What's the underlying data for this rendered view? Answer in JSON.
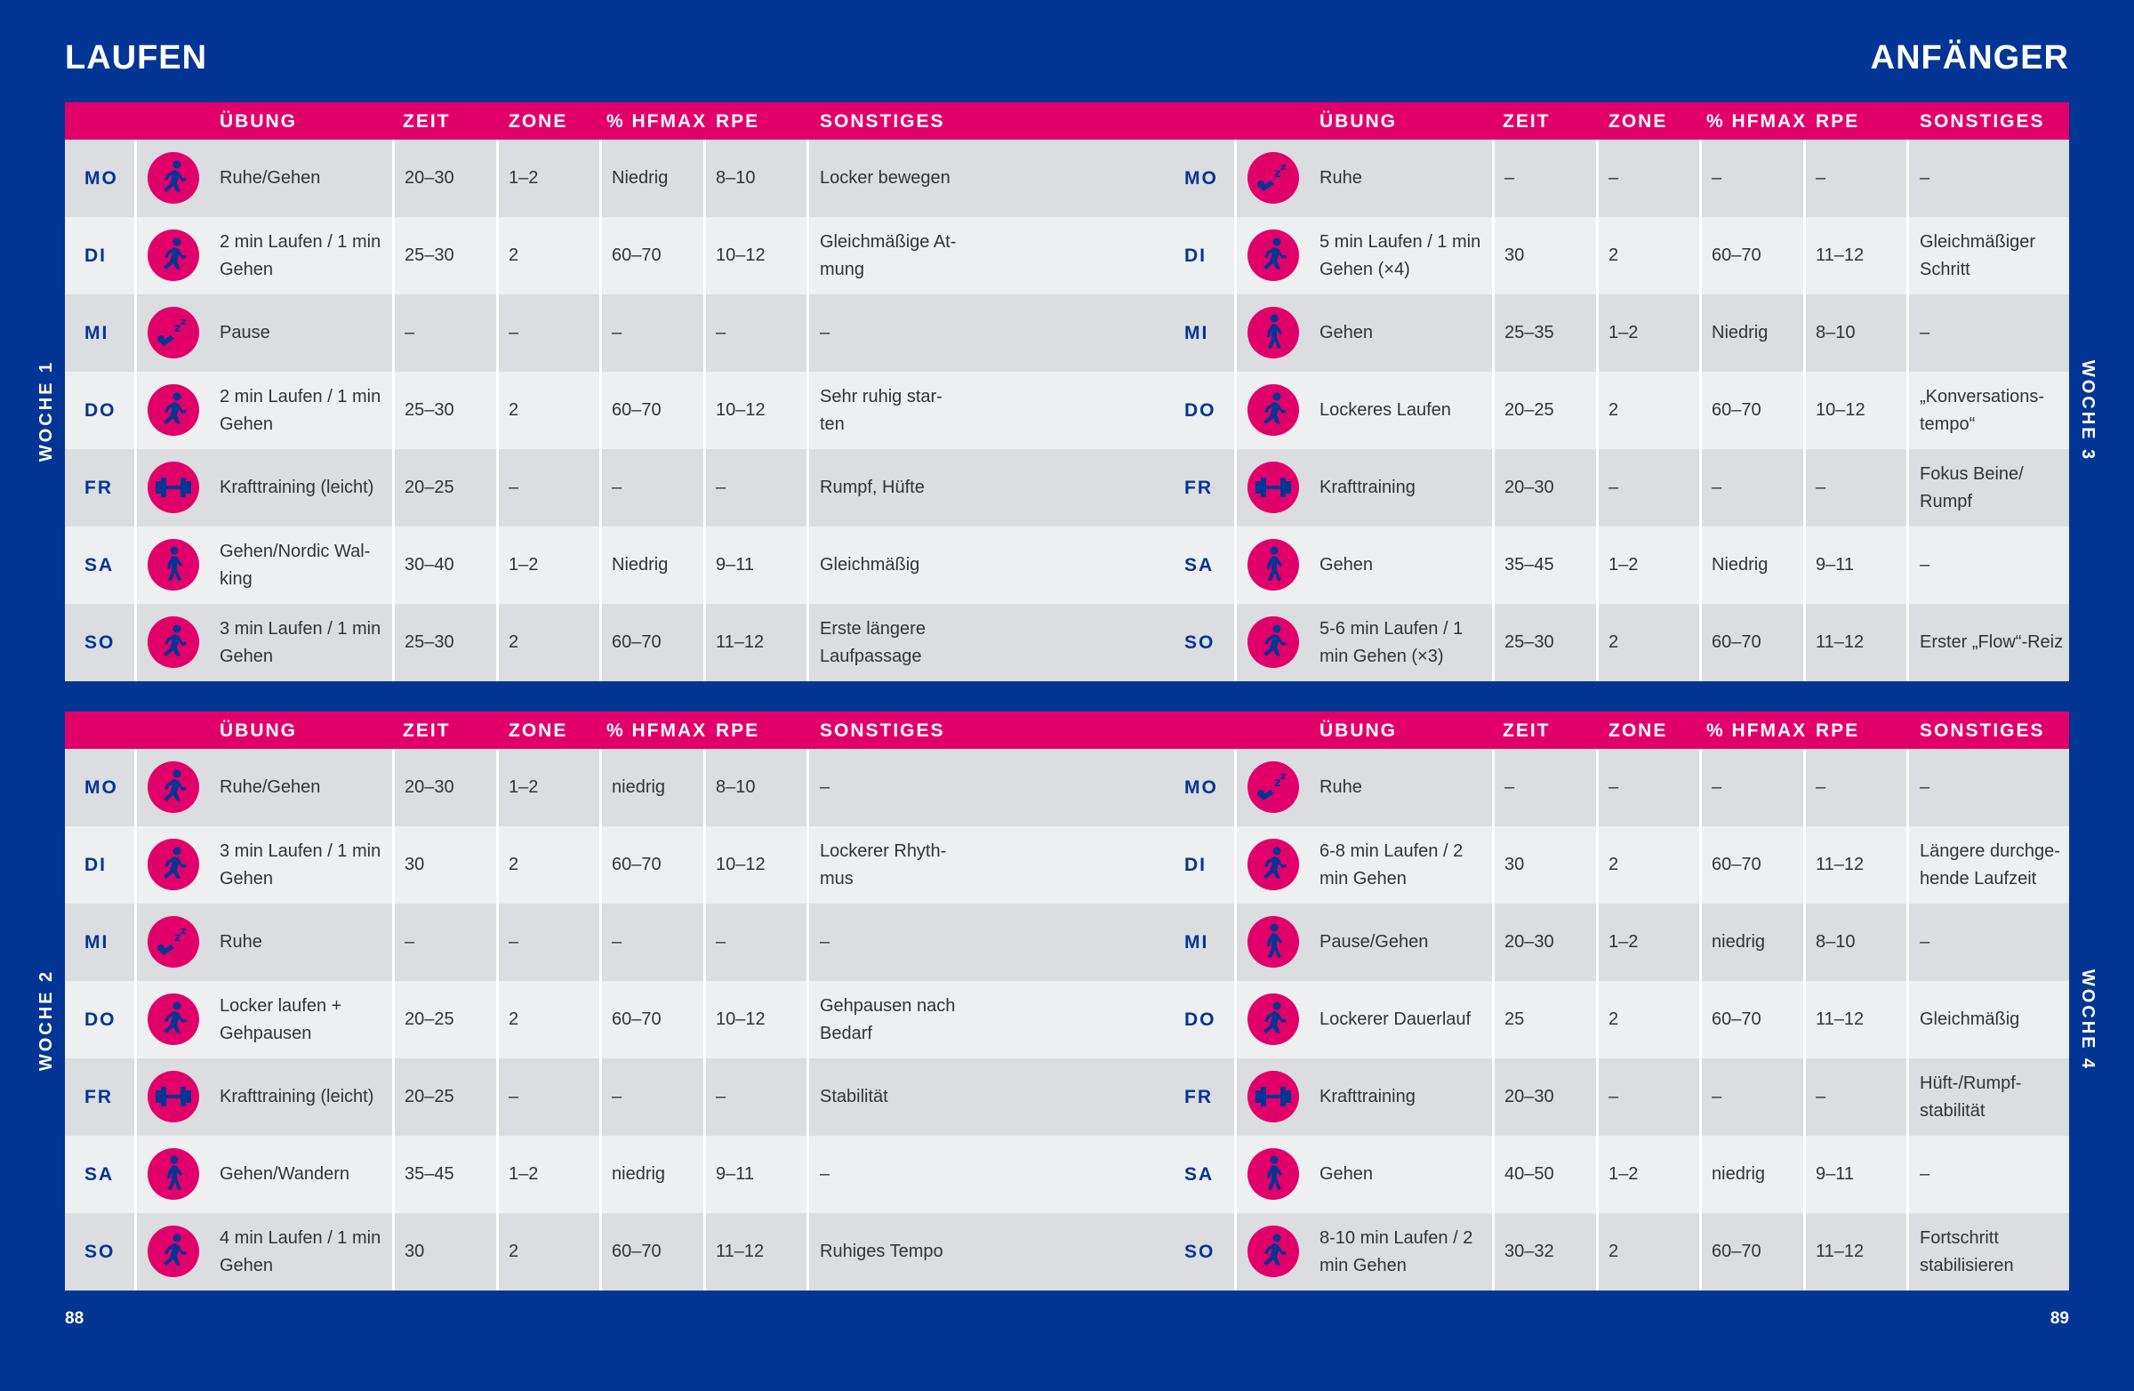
{
  "page": {
    "title_left": "LAUFEN",
    "title_right": "ANFÄNGER",
    "page_left": "88",
    "page_right": "89"
  },
  "colors": {
    "background": "#033594",
    "header": "#e1006a",
    "icon_circle": "#e1006a",
    "icon_figure": "#033594",
    "row_dark": "#dcdde0",
    "row_light": "#eeeff0"
  },
  "headers": [
    "ÜBUNG",
    "ZEIT",
    "ZONE",
    "% HFMAX",
    "RPE",
    "SONSTIGES"
  ],
  "weeks": [
    {
      "label": "WOCHE 1",
      "rows": [
        {
          "day": "MO",
          "icon": "run-icon",
          "exercise": "Ruhe/Gehen",
          "time": "20–30",
          "zone": "1–2",
          "hfmax": "Niedrig",
          "rpe": "8–10",
          "other": "Locker bewegen"
        },
        {
          "day": "DI",
          "icon": "run-icon",
          "exercise": "2 min Laufen / 1 min\nGehen",
          "time": "25–30",
          "zone": "2",
          "hfmax": "60–70",
          "rpe": "10–12",
          "other": "Gleichmäßige At-\nmung"
        },
        {
          "day": "MI",
          "icon": "sleep-icon",
          "exercise": "Pause",
          "time": "–",
          "zone": "–",
          "hfmax": "–",
          "rpe": "–",
          "other": "–"
        },
        {
          "day": "DO",
          "icon": "run-icon",
          "exercise": "2 min Laufen / 1 min\nGehen",
          "time": "25–30",
          "zone": "2",
          "hfmax": "60–70",
          "rpe": "10–12",
          "other": "Sehr ruhig star-\nten"
        },
        {
          "day": "FR",
          "icon": "dumbbell-icon",
          "exercise": "Krafttraining (leicht)",
          "time": "20–25",
          "zone": "–",
          "hfmax": "–",
          "rpe": "–",
          "other": "Rumpf, Hüfte"
        },
        {
          "day": "SA",
          "icon": "walk-icon",
          "exercise": "Gehen/Nordic Wal-\nking",
          "time": "30–40",
          "zone": "1–2",
          "hfmax": "Niedrig",
          "rpe": "9–11",
          "other": "Gleichmäßig"
        },
        {
          "day": "SO",
          "icon": "run-icon",
          "exercise": "3 min Laufen / 1 min\nGehen",
          "time": "25–30",
          "zone": "2",
          "hfmax": "60–70",
          "rpe": "11–12",
          "other": "Erste längere\nLaufpassage"
        }
      ]
    },
    {
      "label": "WOCHE 3",
      "rows": [
        {
          "day": "MO",
          "icon": "sleep-icon",
          "exercise": "Ruhe",
          "time": "–",
          "zone": "–",
          "hfmax": "–",
          "rpe": "–",
          "other": "–"
        },
        {
          "day": "DI",
          "icon": "run-icon",
          "exercise": "5 min Laufen / 1 min\nGehen (×4)",
          "time": "30",
          "zone": "2",
          "hfmax": "60–70",
          "rpe": "11–12",
          "other": "Gleichmäßiger\nSchritt"
        },
        {
          "day": "MI",
          "icon": "walk-icon",
          "exercise": "Gehen",
          "time": "25–35",
          "zone": "1–2",
          "hfmax": "Niedrig",
          "rpe": "8–10",
          "other": "–"
        },
        {
          "day": "DO",
          "icon": "run-icon",
          "exercise": "Lockeres Laufen",
          "time": "20–25",
          "zone": "2",
          "hfmax": "60–70",
          "rpe": "10–12",
          "other": "„Konversations-\ntempo“"
        },
        {
          "day": "FR",
          "icon": "dumbbell-icon",
          "exercise": "Krafttraining",
          "time": "20–30",
          "zone": "–",
          "hfmax": "–",
          "rpe": "–",
          "other": "Fokus Beine/\nRumpf"
        },
        {
          "day": "SA",
          "icon": "walk-icon",
          "exercise": "Gehen",
          "time": "35–45",
          "zone": "1–2",
          "hfmax": "Niedrig",
          "rpe": "9–11",
          "other": "–"
        },
        {
          "day": "SO",
          "icon": "run-icon",
          "exercise": "5-6 min Laufen / 1\nmin Gehen (×3)",
          "time": "25–30",
          "zone": "2",
          "hfmax": "60–70",
          "rpe": "11–12",
          "other": "Erster „Flow“-Reiz"
        }
      ]
    },
    {
      "label": "WOCHE 2",
      "rows": [
        {
          "day": "MO",
          "icon": "run-icon",
          "exercise": "Ruhe/Gehen",
          "time": "20–30",
          "zone": "1–2",
          "hfmax": "niedrig",
          "rpe": "8–10",
          "other": "–"
        },
        {
          "day": "DI",
          "icon": "run-icon",
          "exercise": "3 min Laufen / 1 min\nGehen",
          "time": "30",
          "zone": "2",
          "hfmax": "60–70",
          "rpe": "10–12",
          "other": "Lockerer Rhyth-\nmus"
        },
        {
          "day": "MI",
          "icon": "sleep-icon",
          "exercise": "Ruhe",
          "time": "–",
          "zone": "–",
          "hfmax": "–",
          "rpe": "–",
          "other": "–"
        },
        {
          "day": "DO",
          "icon": "run-icon",
          "exercise": "Locker laufen +\nGehpausen",
          "time": "20–25",
          "zone": "2",
          "hfmax": "60–70",
          "rpe": "10–12",
          "other": "Gehpausen nach\nBedarf"
        },
        {
          "day": "FR",
          "icon": "dumbbell-icon",
          "exercise": "Krafttraining (leicht)",
          "time": "20–25",
          "zone": "–",
          "hfmax": "–",
          "rpe": "–",
          "other": "Stabilität"
        },
        {
          "day": "SA",
          "icon": "walk-icon",
          "exercise": "Gehen/Wandern",
          "time": "35–45",
          "zone": "1–2",
          "hfmax": "niedrig",
          "rpe": "9–11",
          "other": "–"
        },
        {
          "day": "SO",
          "icon": "run-icon",
          "exercise": "4 min Laufen / 1 min\nGehen",
          "time": "30",
          "zone": "2",
          "hfmax": "60–70",
          "rpe": "11–12",
          "other": "Ruhiges Tempo"
        }
      ]
    },
    {
      "label": "WOCHE 4",
      "rows": [
        {
          "day": "MO",
          "icon": "sleep-icon",
          "exercise": "Ruhe",
          "time": "–",
          "zone": "–",
          "hfmax": "–",
          "rpe": "–",
          "other": "–"
        },
        {
          "day": "DI",
          "icon": "run-icon",
          "exercise": "6-8 min Laufen / 2\nmin Gehen",
          "time": "30",
          "zone": "2",
          "hfmax": "60–70",
          "rpe": "11–12",
          "other": "Längere durchge-\nhende Laufzeit"
        },
        {
          "day": "MI",
          "icon": "walk-icon",
          "exercise": "Pause/Gehen",
          "time": "20–30",
          "zone": "1–2",
          "hfmax": "niedrig",
          "rpe": "8–10",
          "other": "–"
        },
        {
          "day": "DO",
          "icon": "run-icon",
          "exercise": "Lockerer Dauerlauf",
          "time": "25",
          "zone": "2",
          "hfmax": "60–70",
          "rpe": "11–12",
          "other": "Gleichmäßig"
        },
        {
          "day": "FR",
          "icon": "dumbbell-icon",
          "exercise": "Krafttraining",
          "time": "20–30",
          "zone": "–",
          "hfmax": "–",
          "rpe": "–",
          "other": "Hüft-/Rumpf-\nstabilität"
        },
        {
          "day": "SA",
          "icon": "walk-icon",
          "exercise": "Gehen",
          "time": "40–50",
          "zone": "1–2",
          "hfmax": "niedrig",
          "rpe": "9–11",
          "other": "–"
        },
        {
          "day": "SO",
          "icon": "run-icon",
          "exercise": "8-10 min Laufen / 2\nmin Gehen",
          "time": "30–32",
          "zone": "2",
          "hfmax": "60–70",
          "rpe": "11–12",
          "other": "Fortschritt\nstabilisieren"
        }
      ]
    }
  ]
}
